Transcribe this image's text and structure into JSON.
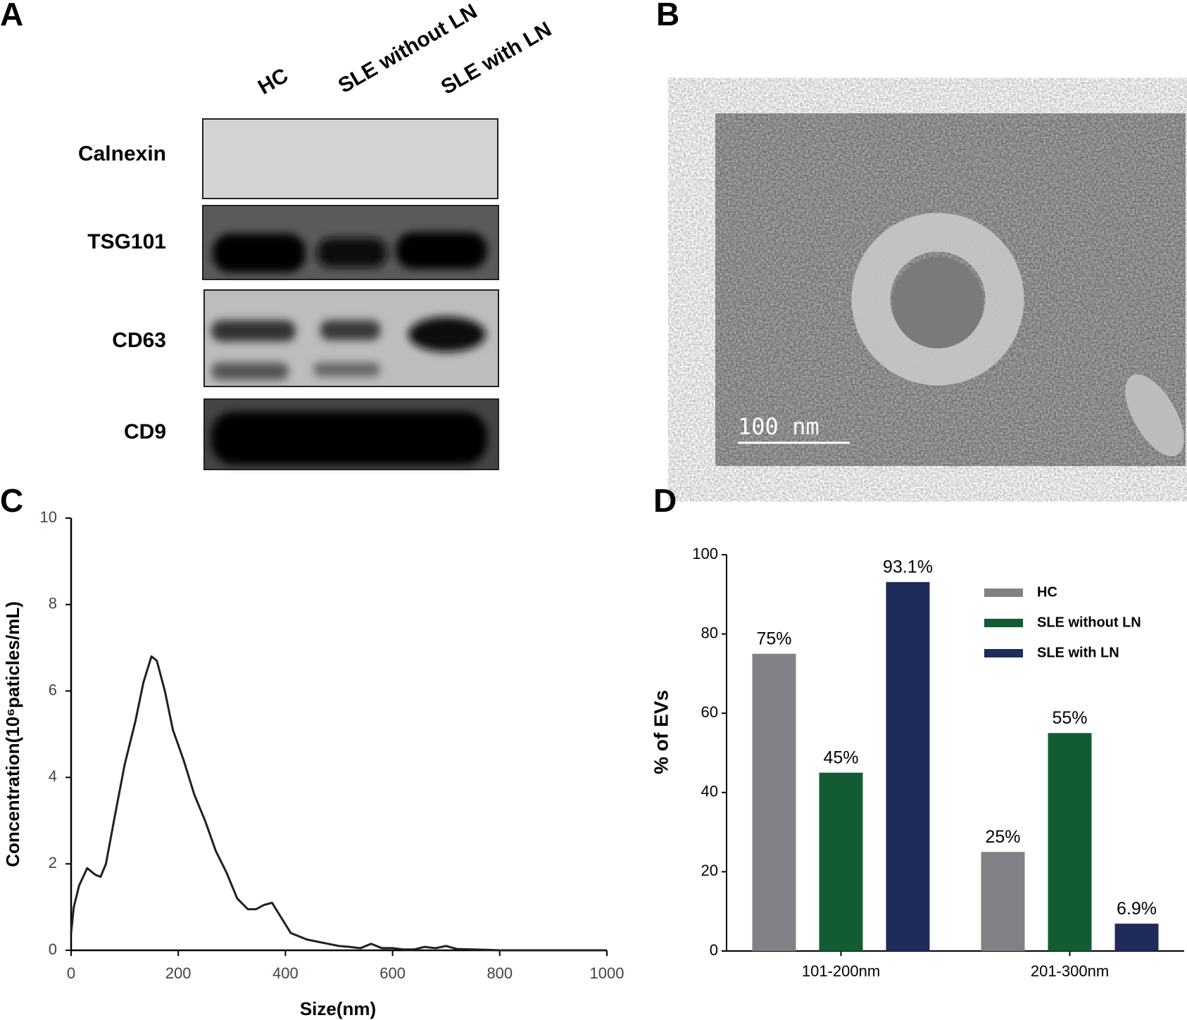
{
  "panels": {
    "A": {
      "label": "A",
      "columns": [
        "HC",
        "SLE without LN",
        "SLE with LN"
      ],
      "rows": [
        "Calnexin",
        "TSG101",
        "CD63",
        "CD9"
      ]
    },
    "B": {
      "label": "B",
      "scale_bar": "100 nm"
    },
    "C": {
      "label": "C"
    },
    "D": {
      "label": "D"
    }
  },
  "chart_data": [
    {
      "type": "line",
      "x_label": "Size(nm)",
      "y_label": "Concentration(10⁶paticles/mL)",
      "x": [
        0,
        5,
        15,
        30,
        45,
        55,
        65,
        80,
        100,
        120,
        135,
        150,
        160,
        175,
        190,
        210,
        230,
        250,
        270,
        290,
        310,
        330,
        345,
        360,
        375,
        390,
        410,
        440,
        460,
        480,
        500,
        520,
        540,
        560,
        580,
        600,
        620,
        640,
        660,
        680,
        700,
        720,
        750,
        780,
        800,
        1000
      ],
      "series": [
        {
          "color": "#231f20",
          "values": [
            0.4,
            1.0,
            1.5,
            1.9,
            1.75,
            1.7,
            2.0,
            3.0,
            4.3,
            5.3,
            6.2,
            6.8,
            6.7,
            6.0,
            5.1,
            4.4,
            3.6,
            3.0,
            2.3,
            1.8,
            1.2,
            0.95,
            0.95,
            1.05,
            1.1,
            0.8,
            0.4,
            0.25,
            0.2,
            0.15,
            0.1,
            0.08,
            0.05,
            0.15,
            0.05,
            0.05,
            0.02,
            0.02,
            0.08,
            0.05,
            0.1,
            0.03,
            0.02,
            0.01,
            0,
            0
          ]
        }
      ],
      "xlim": [
        0,
        1000
      ],
      "xticks": [
        0,
        200,
        400,
        600,
        800,
        1000
      ],
      "ylim": [
        0,
        10
      ],
      "yticks": [
        0,
        2,
        4,
        6,
        8,
        10
      ]
    },
    {
      "type": "bar",
      "y_label": "% of EVs",
      "categories": [
        "101-200nm",
        "201-300nm"
      ],
      "series": [
        {
          "name": "HC",
          "color": "#808285",
          "values": [
            75,
            25
          ],
          "value_labels": [
            "75%",
            "25%"
          ]
        },
        {
          "name": "SLE without LN",
          "color": "#135c33",
          "values": [
            45,
            55
          ],
          "value_labels": [
            "45%",
            "55%"
          ]
        },
        {
          "name": "SLE with LN",
          "color": "#1f2b5a",
          "values": [
            93.1,
            6.9
          ],
          "value_labels": [
            "93.1%",
            "6.9%"
          ]
        }
      ],
      "ylim": [
        0,
        100
      ],
      "yticks": [
        0,
        20,
        40,
        60,
        80,
        100
      ],
      "legend": "top-right"
    }
  ]
}
